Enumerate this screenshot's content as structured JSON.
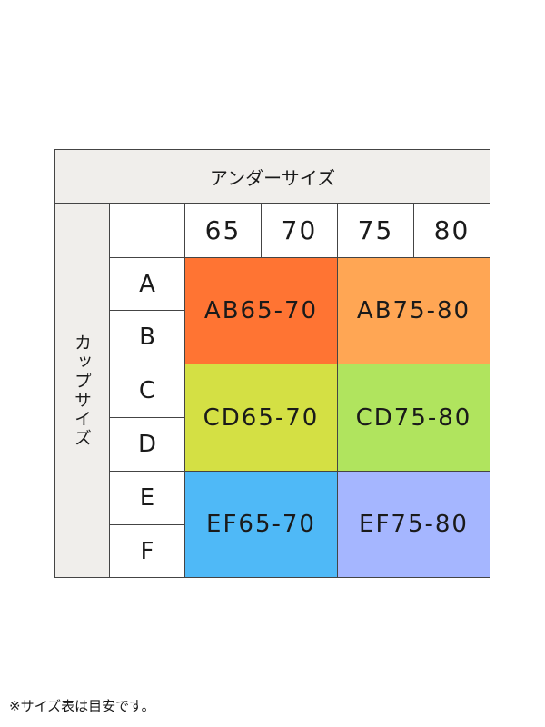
{
  "header": {
    "under_size": "アンダーサイズ",
    "cup_size": "カップサイズ"
  },
  "under_sizes": [
    "65",
    "70",
    "75",
    "80"
  ],
  "cups": [
    "A",
    "B",
    "C",
    "D",
    "E",
    "F"
  ],
  "groups": [
    {
      "label": "AB65-70",
      "color": "#ff7433"
    },
    {
      "label": "AB75-80",
      "color": "#ffa654"
    },
    {
      "label": "CD65-70",
      "color": "#d4e044"
    },
    {
      "label": "CD75-80",
      "color": "#b0e45e"
    },
    {
      "label": "EF65-70",
      "color": "#4fb9f7"
    },
    {
      "label": "EF75-80",
      "color": "#a5b6ff"
    }
  ],
  "note": "※サイズ表は目安です。"
}
